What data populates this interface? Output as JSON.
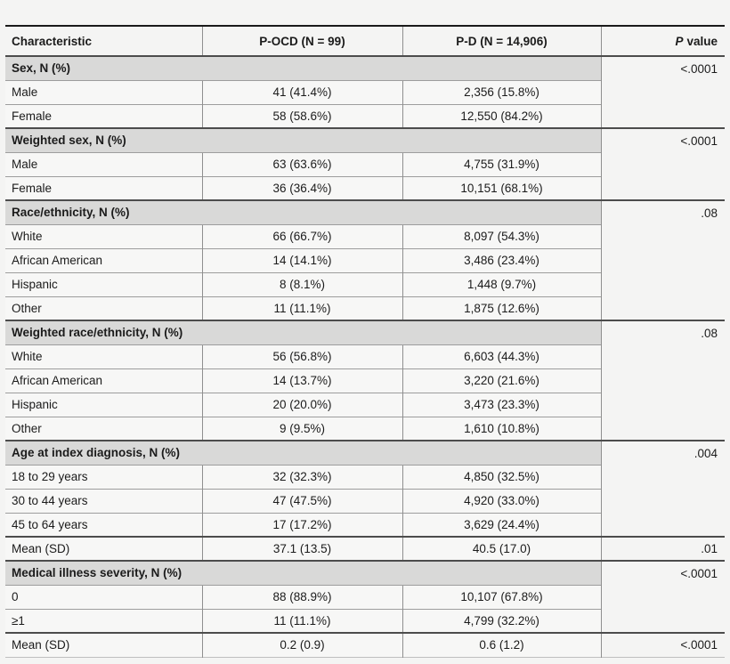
{
  "table": {
    "columns": [
      "Characteristic",
      "P-OCD (N = 99)",
      "P-D (N = 14,906)"
    ],
    "p_value_header": {
      "italic": "P",
      "rest": "value"
    },
    "colors": {
      "page_background": "#f4f4f3",
      "section_band": "#d9d9d8",
      "row_background": "#f7f7f6",
      "rule_dark": "#4c4c4c",
      "rule_light": "#9d9d9d",
      "text": "#1b1b1b"
    },
    "sections": [
      {
        "label": "Sex, N (%)",
        "p_value": "<.0001",
        "rows": [
          {
            "label": "Male",
            "pocd": "41 (41.4%)",
            "pd": "2,356 (15.8%)"
          },
          {
            "label": "Female",
            "pocd": "58 (58.6%)",
            "pd": "12,550 (84.2%)"
          }
        ]
      },
      {
        "label": "Weighted sex, N (%)",
        "p_value": "<.0001",
        "rows": [
          {
            "label": "Male",
            "pocd": "63 (63.6%)",
            "pd": "4,755 (31.9%)"
          },
          {
            "label": "Female",
            "pocd": "36 (36.4%)",
            "pd": "10,151 (68.1%)"
          }
        ]
      },
      {
        "label": "Race/ethnicity, N (%)",
        "p_value": ".08",
        "rows": [
          {
            "label": "White",
            "pocd": "66 (66.7%)",
            "pd": "8,097 (54.3%)"
          },
          {
            "label": "African American",
            "pocd": "14 (14.1%)",
            "pd": "3,486 (23.4%)"
          },
          {
            "label": "Hispanic",
            "pocd": "8 (8.1%)",
            "pd": "1,448 (9.7%)"
          },
          {
            "label": "Other",
            "pocd": "11 (11.1%)",
            "pd": "1,875 (12.6%)"
          }
        ]
      },
      {
        "label": "Weighted race/ethnicity, N (%)",
        "p_value": ".08",
        "rows": [
          {
            "label": "White",
            "pocd": "56 (56.8%)",
            "pd": "6,603 (44.3%)"
          },
          {
            "label": "African American",
            "pocd": "14 (13.7%)",
            "pd": "3,220 (21.6%)"
          },
          {
            "label": "Hispanic",
            "pocd": "20 (20.0%)",
            "pd": "3,473 (23.3%)"
          },
          {
            "label": "Other",
            "pocd": "9 (9.5%)",
            "pd": "1,610 (10.8%)"
          }
        ]
      },
      {
        "label": "Age at index diagnosis, N (%)",
        "p_value": ".004",
        "rows": [
          {
            "label": "18 to 29 years",
            "pocd": "32 (32.3%)",
            "pd": "4,850 (32.5%)"
          },
          {
            "label": "30 to 44 years",
            "pocd": "47 (47.5%)",
            "pd": "4,920 (33.0%)"
          },
          {
            "label": "45 to 64 years",
            "pocd": "17 (17.2%)",
            "pd": "3,629 (24.4%)"
          },
          {
            "label": "Mean (SD)",
            "pocd": "37.1 (13.5)",
            "pd": "40.5 (17.0)",
            "p_value": ".01"
          }
        ]
      },
      {
        "label": "Medical illness severity, N (%)",
        "p_value": "<.0001",
        "rows": [
          {
            "label": "0",
            "pocd": "88 (88.9%)",
            "pd": "10,107 (67.8%)"
          },
          {
            "label": "≥1",
            "pocd": "11 (11.1%)",
            "pd": "4,799 (32.2%)"
          },
          {
            "label": "Mean (SD)",
            "pocd": "0.2 (0.9)",
            "pd": "0.6 (1.2)",
            "p_value": "<.0001"
          }
        ]
      }
    ]
  }
}
